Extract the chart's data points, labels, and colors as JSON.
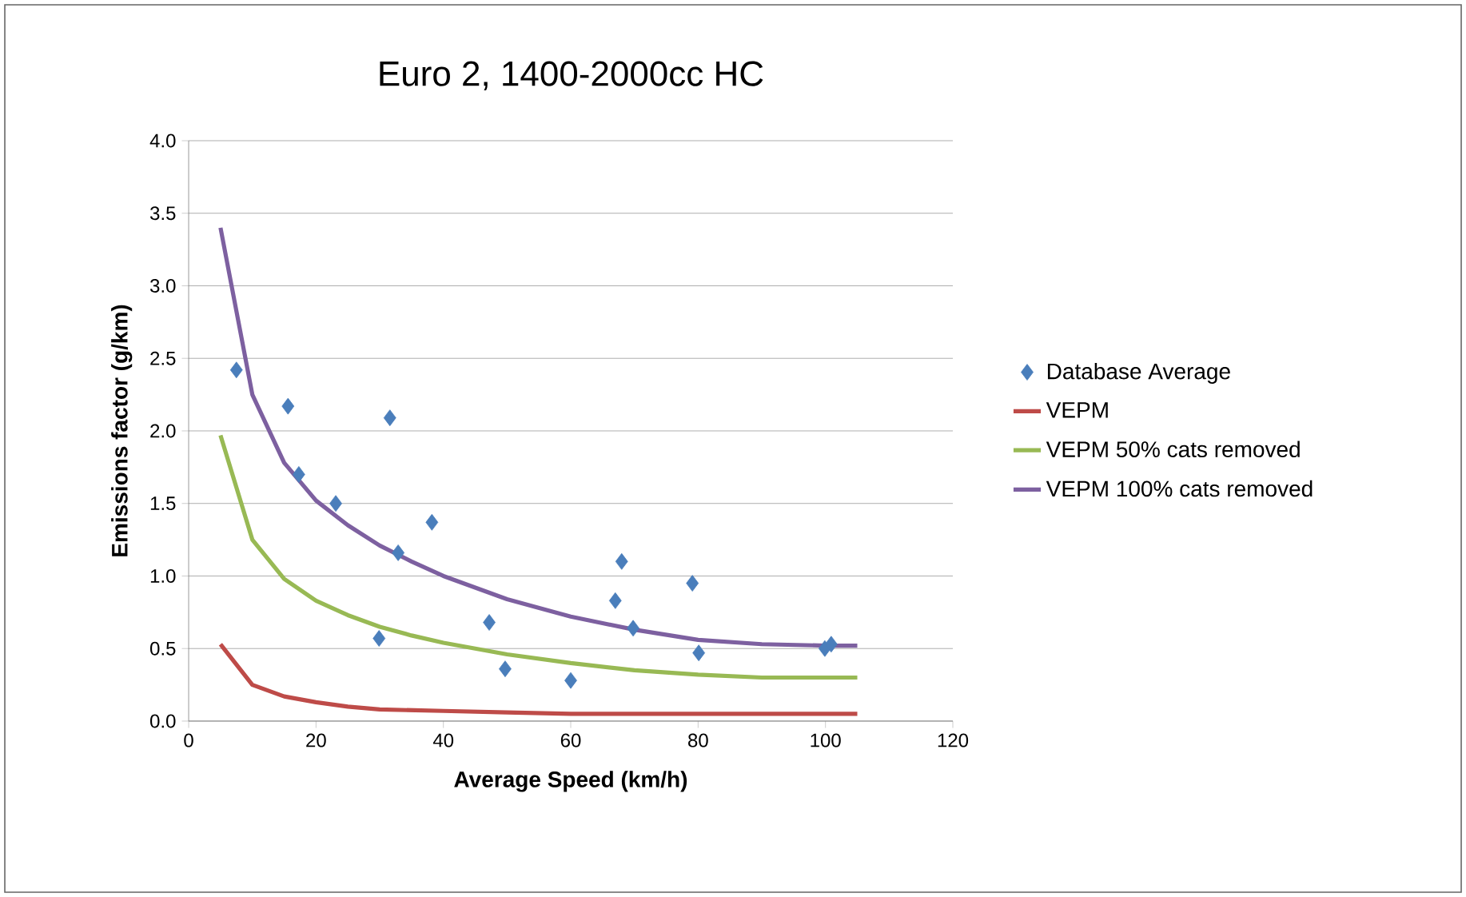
{
  "chart_data": {
    "type": "scatter",
    "title": "Euro 2, 1400-2000cc HC",
    "xlabel": "Average Speed (km/h)",
    "ylabel": "Emissions factor (g/km)",
    "xlim": [
      0,
      120
    ],
    "xticks": [
      0,
      20,
      40,
      60,
      80,
      100,
      120
    ],
    "ylim": [
      0,
      4
    ],
    "yticks": [
      {
        "value": 0,
        "label": "0.0"
      },
      {
        "value": 0.5,
        "label": "0.5"
      },
      {
        "value": 1,
        "label": "1.0"
      },
      {
        "value": 1.5,
        "label": "1.5"
      },
      {
        "value": 2,
        "label": "2.0"
      },
      {
        "value": 2.5,
        "label": "2.5"
      },
      {
        "value": 3,
        "label": "3.0"
      },
      {
        "value": 3.5,
        "label": "3.5"
      },
      {
        "value": 4,
        "label": "4.0"
      }
    ],
    "grid": "y",
    "legend": "right",
    "series": [
      {
        "name": "Database Average",
        "marker": "diamond",
        "color": "#4a7ebb",
        "x": [
          7.5,
          15.6,
          17.3,
          23.1,
          29.9,
          31.6,
          32.9,
          38.2,
          47.2,
          49.7,
          60.0,
          67.0,
          68.0,
          69.8,
          79.1,
          80.1,
          99.9,
          100.9
        ],
        "values": [
          2.42,
          2.17,
          1.7,
          1.5,
          0.57,
          2.09,
          1.16,
          1.37,
          0.68,
          0.36,
          0.28,
          0.83,
          1.1,
          0.64,
          0.95,
          0.47,
          0.5,
          0.53
        ]
      },
      {
        "name": "VEPM",
        "type": "line",
        "color": "#be4b48",
        "x": [
          5,
          10,
          15,
          20,
          25,
          30,
          40,
          50,
          60,
          80,
          100,
          105
        ],
        "values": [
          0.53,
          0.25,
          0.17,
          0.13,
          0.1,
          0.08,
          0.07,
          0.06,
          0.05,
          0.05,
          0.05,
          0.05
        ]
      },
      {
        "name": "VEPM 50% cats removed",
        "type": "line",
        "color": "#98b954",
        "x": [
          5,
          10,
          15,
          20,
          25,
          30,
          35,
          40,
          50,
          60,
          70,
          80,
          90,
          100,
          105
        ],
        "values": [
          1.97,
          1.25,
          0.98,
          0.83,
          0.73,
          0.65,
          0.59,
          0.54,
          0.46,
          0.4,
          0.35,
          0.32,
          0.3,
          0.3,
          0.3
        ]
      },
      {
        "name": "VEPM 100% cats removed",
        "type": "line",
        "color": "#7d60a0",
        "x": [
          5,
          10,
          15,
          20,
          25,
          30,
          35,
          40,
          50,
          60,
          70,
          80,
          90,
          100,
          105
        ],
        "values": [
          3.4,
          2.25,
          1.78,
          1.52,
          1.35,
          1.21,
          1.1,
          1.0,
          0.84,
          0.72,
          0.63,
          0.56,
          0.53,
          0.52,
          0.52
        ]
      }
    ]
  }
}
